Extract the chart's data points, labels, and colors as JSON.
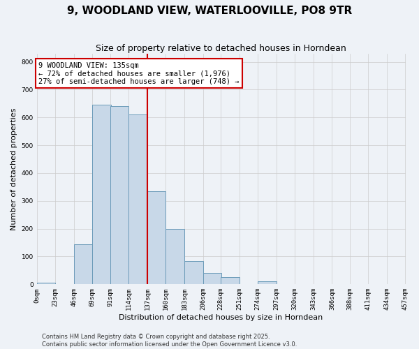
{
  "title": "9, WOODLAND VIEW, WATERLOOVILLE, PO8 9TR",
  "subtitle": "Size of property relative to detached houses in Horndean",
  "xlabel": "Distribution of detached houses by size in Horndean",
  "ylabel": "Number of detached properties",
  "bin_labels": [
    "0sqm",
    "23sqm",
    "46sqm",
    "69sqm",
    "91sqm",
    "114sqm",
    "137sqm",
    "160sqm",
    "183sqm",
    "206sqm",
    "228sqm",
    "251sqm",
    "274sqm",
    "297sqm",
    "320sqm",
    "343sqm",
    "366sqm",
    "388sqm",
    "411sqm",
    "434sqm",
    "457sqm"
  ],
  "bin_edges": [
    0,
    23,
    46,
    69,
    91,
    114,
    137,
    160,
    183,
    206,
    228,
    251,
    274,
    297,
    320,
    343,
    366,
    388,
    411,
    434,
    457
  ],
  "bar_values": [
    5,
    0,
    145,
    645,
    640,
    610,
    335,
    198,
    83,
    42,
    25,
    0,
    10,
    0,
    0,
    0,
    0,
    0,
    0,
    0
  ],
  "bar_color": "#c8d8e8",
  "bar_edge_color": "#6a9ab8",
  "vline_x": 137,
  "vline_color": "#cc0000",
  "ylim": [
    0,
    830
  ],
  "yticks": [
    0,
    100,
    200,
    300,
    400,
    500,
    600,
    700,
    800
  ],
  "annotation_title": "9 WOODLAND VIEW: 135sqm",
  "annotation_line1": "← 72% of detached houses are smaller (1,976)",
  "annotation_line2": "27% of semi-detached houses are larger (748) →",
  "annotation_box_color": "#ffffff",
  "annotation_box_edge": "#cc0000",
  "footer_line1": "Contains HM Land Registry data © Crown copyright and database right 2025.",
  "footer_line2": "Contains public sector information licensed under the Open Government Licence v3.0.",
  "background_color": "#eef2f7",
  "grid_color": "#cccccc",
  "title_fontsize": 11,
  "subtitle_fontsize": 9,
  "axis_label_fontsize": 8,
  "tick_fontsize": 6.5,
  "annotation_fontsize": 7.5,
  "footer_fontsize": 6
}
